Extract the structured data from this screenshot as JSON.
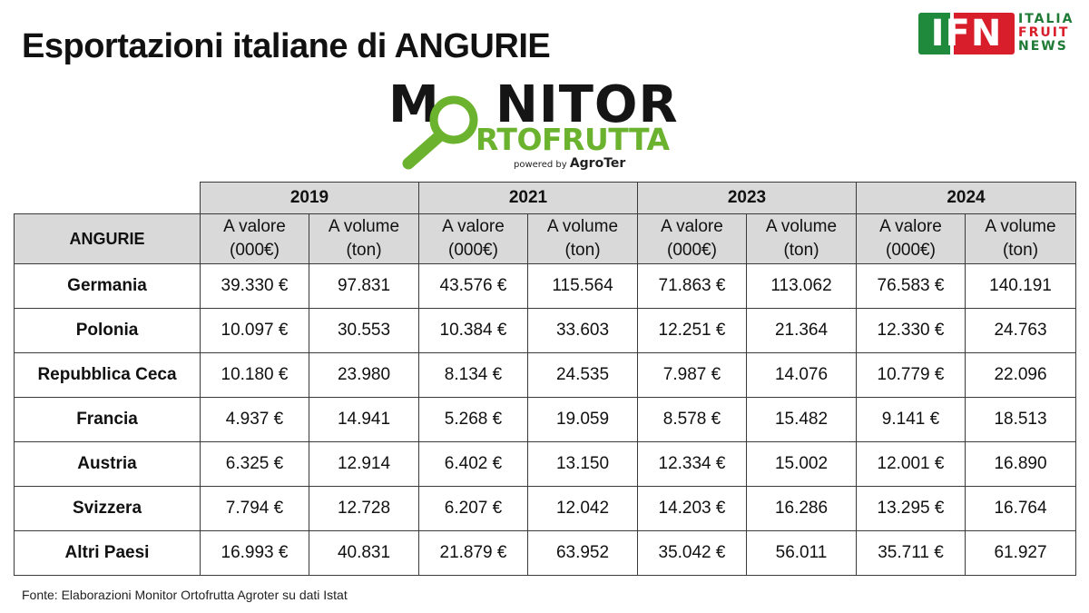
{
  "title": "Esportazioni italiane di ANGURIE",
  "ifn_logo": {
    "letters": "IFN",
    "line1": "ITALIA",
    "line2": "FRUIT",
    "line3": "NEWS"
  },
  "monitor_logo": {
    "word1_start": "M",
    "word1_end": "NITOR",
    "word2": "RTOFRUTTA",
    "powered_by": "powered by",
    "brand": "AgroTer",
    "green": "#6bb22e"
  },
  "table": {
    "row_header": "ANGURIE",
    "years": [
      "2019",
      "2021",
      "2023",
      "2024"
    ],
    "value_label": [
      "A valore",
      "(000€)"
    ],
    "volume_label": [
      "A volume",
      "(ton)"
    ],
    "rows": [
      {
        "country": "Germania",
        "cells": [
          "39.330 €",
          "97.831",
          "43.576 €",
          "115.564",
          "71.863 €",
          "113.062",
          "76.583 €",
          "140.191"
        ]
      },
      {
        "country": "Polonia",
        "cells": [
          "10.097 €",
          "30.553",
          "10.384 €",
          "33.603",
          "12.251 €",
          "21.364",
          "12.330 €",
          "24.763"
        ]
      },
      {
        "country": "Repubblica Ceca",
        "cells": [
          "10.180 €",
          "23.980",
          "8.134 €",
          "24.535",
          "7.987 €",
          "14.076",
          "10.779 €",
          "22.096"
        ]
      },
      {
        "country": "Francia",
        "cells": [
          "4.937 €",
          "14.941",
          "5.268 €",
          "19.059",
          "8.578 €",
          "15.482",
          "9.141 €",
          "18.513"
        ]
      },
      {
        "country": "Austria",
        "cells": [
          "6.325 €",
          "12.914",
          "6.402 €",
          "13.150",
          "12.334 €",
          "15.002",
          "12.001 €",
          "16.890"
        ]
      },
      {
        "country": "Svizzera",
        "cells": [
          "7.794 €",
          "12.728",
          "6.207 €",
          "12.042",
          "14.203 €",
          "16.286",
          "13.295 €",
          "16.764"
        ]
      },
      {
        "country": "Altri Paesi",
        "cells": [
          "16.993 €",
          "40.831",
          "21.879 €",
          "63.952",
          "35.042 €",
          "56.011",
          "35.711 €",
          "61.927"
        ]
      }
    ]
  },
  "source": "Fonte: Elaborazioni Monitor Ortofrutta Agroter su dati Istat"
}
